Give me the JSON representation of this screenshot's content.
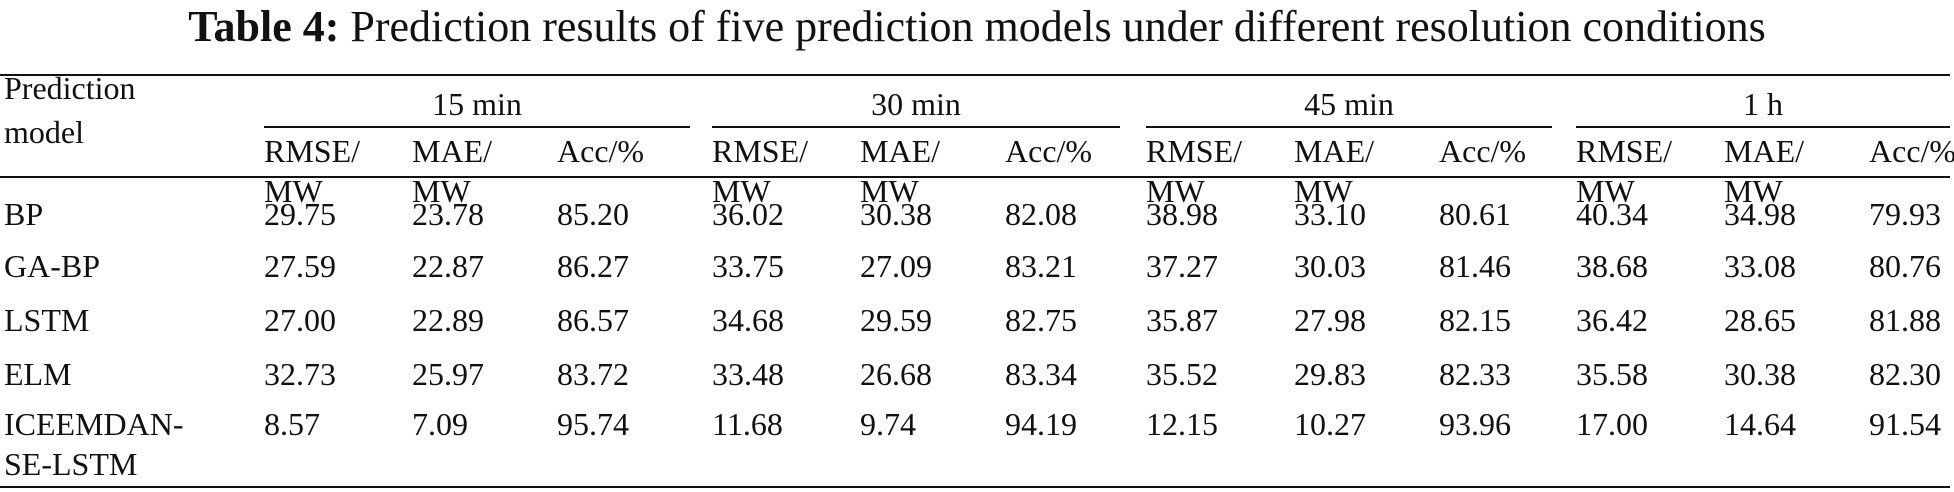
{
  "caption": {
    "label": "Table 4:",
    "text": "Prediction results of five prediction models under different resolution conditions"
  },
  "header": {
    "model_label": "Prediction\nmodel",
    "groups": [
      "15 min",
      "30 min",
      "45 min",
      "1 h"
    ],
    "sub": [
      "RMSE/\nMW",
      "MAE/\nMW",
      "Acc/%"
    ]
  },
  "rows": [
    {
      "model": "BP",
      "values": [
        "29.75",
        "23.78",
        "85.20",
        "36.02",
        "30.38",
        "82.08",
        "38.98",
        "33.10",
        "80.61",
        "40.34",
        "34.98",
        "79.93"
      ]
    },
    {
      "model": "GA-BP",
      "values": [
        "27.59",
        "22.87",
        "86.27",
        "33.75",
        "27.09",
        "83.21",
        "37.27",
        "30.03",
        "81.46",
        "38.68",
        "33.08",
        "80.76"
      ]
    },
    {
      "model": "LSTM",
      "values": [
        "27.00",
        "22.89",
        "86.57",
        "34.68",
        "29.59",
        "82.75",
        "35.87",
        "27.98",
        "82.15",
        "36.42",
        "28.65",
        "81.88"
      ]
    },
    {
      "model": "ELM",
      "values": [
        "32.73",
        "25.97",
        "83.72",
        "33.48",
        "26.68",
        "83.34",
        "35.52",
        "29.83",
        "82.33",
        "35.58",
        "30.38",
        "82.30"
      ]
    },
    {
      "model": "ICEEMDAN-\nSE-LSTM",
      "values": [
        "8.57",
        "7.09",
        "95.74",
        "11.68",
        "9.74",
        "94.19",
        "12.15",
        "10.27",
        "93.96",
        "17.00",
        "14.64",
        "91.54"
      ]
    }
  ]
}
